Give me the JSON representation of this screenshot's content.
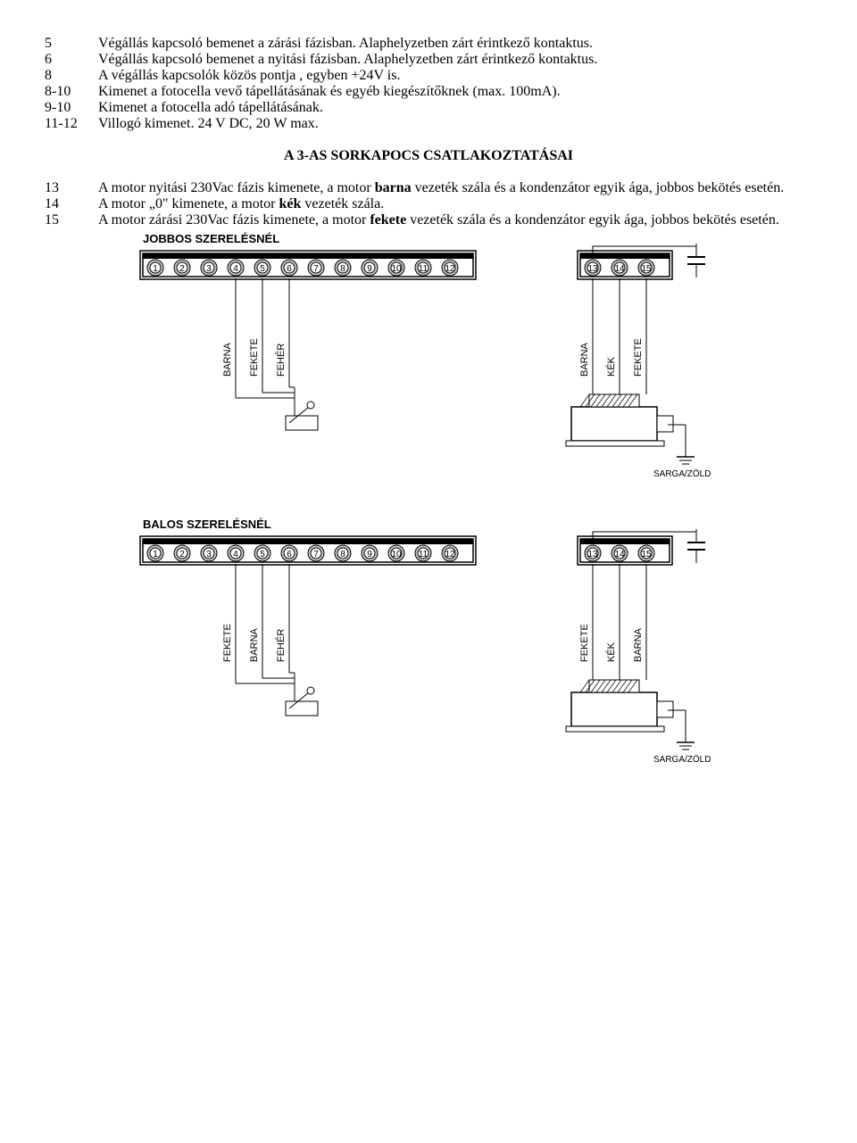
{
  "defs_top": [
    {
      "num": "5",
      "text_parts": [
        "Végállás kapcsoló bemenet a zárási fázisban. Alaphelyzetben zárt érintkező kontaktus."
      ]
    },
    {
      "num": "6",
      "text_parts": [
        "Végállás kapcsoló bemenet a nyitási fázisban. Alaphelyzetben zárt érintkező kontaktus."
      ]
    },
    {
      "num": "8",
      "text_parts": [
        "A végállás kapcsolók közös pontja , egyben +24V is."
      ]
    },
    {
      "num": "8-10",
      "text_parts": [
        "Kimenet a fotocella vevő tápellátásának és egyéb kiegészítőknek (max. 100mA)."
      ]
    },
    {
      "num": "9-10",
      "text_parts": [
        "Kimenet a fotocella adó tápellátásának."
      ]
    },
    {
      "num": "11-12",
      "text_parts": [
        "Villogó kimenet. 24 V DC, 20 W max."
      ]
    }
  ],
  "section_title": "A 3-AS SORKAPOCS CSATLAKOZTATÁSAI",
  "defs_bottom": [
    {
      "num": "13",
      "text_parts": [
        "A motor nyitási 230Vac fázis kimenete, a motor ",
        "barna",
        " vezeték szála és a kondenzátor egyik ága, jobbos bekötés esetén."
      ],
      "bold_idx": [
        1
      ]
    },
    {
      "num": "14",
      "text_parts": [
        "A motor „0\" kimenete, a motor ",
        "kék",
        " vezeték szála."
      ],
      "bold_idx": [
        1
      ]
    },
    {
      "num": "15",
      "text_parts": [
        "A motor zárási 230Vac fázis kimenete, a motor ",
        "fekete",
        " vezeték szála és a kondenzátor egyik ága, jobbos bekötés esetén."
      ],
      "bold_idx": [
        1
      ]
    }
  ],
  "diagrams": [
    {
      "title": "JOBBOS SZERELÉSNÉL",
      "left_terminals": 12,
      "right_terminals": [
        13,
        14,
        15
      ],
      "left_wires": [
        {
          "terminal": 4,
          "label": "BARNA"
        },
        {
          "terminal": 5,
          "label": "FEKETE"
        },
        {
          "terminal": 6,
          "label": "FEHÉR"
        }
      ],
      "right_wires": [
        {
          "terminal": 13,
          "label": "BARNA"
        },
        {
          "terminal": 14,
          "label": "KÉK"
        },
        {
          "terminal": 15,
          "label": "FEKETE"
        }
      ],
      "ground_label": "SARGA/ZÖLD"
    },
    {
      "title": "BALOS SZERELÉSNÉL",
      "left_terminals": 12,
      "right_terminals": [
        13,
        14,
        15
      ],
      "left_wires": [
        {
          "terminal": 4,
          "label": "FEKETE"
        },
        {
          "terminal": 5,
          "label": "BARNA"
        },
        {
          "terminal": 6,
          "label": "FEHÉR"
        }
      ],
      "right_wires": [
        {
          "terminal": 13,
          "label": "FEKETE"
        },
        {
          "terminal": 14,
          "label": "KÉK"
        },
        {
          "terminal": 15,
          "label": "BARNA"
        }
      ],
      "ground_label": "SARGA/ZÖLD"
    }
  ],
  "colors": {
    "stroke": "#000000",
    "fill_block": "#0a0a0a",
    "fill_screw": "#c7c7c7"
  }
}
